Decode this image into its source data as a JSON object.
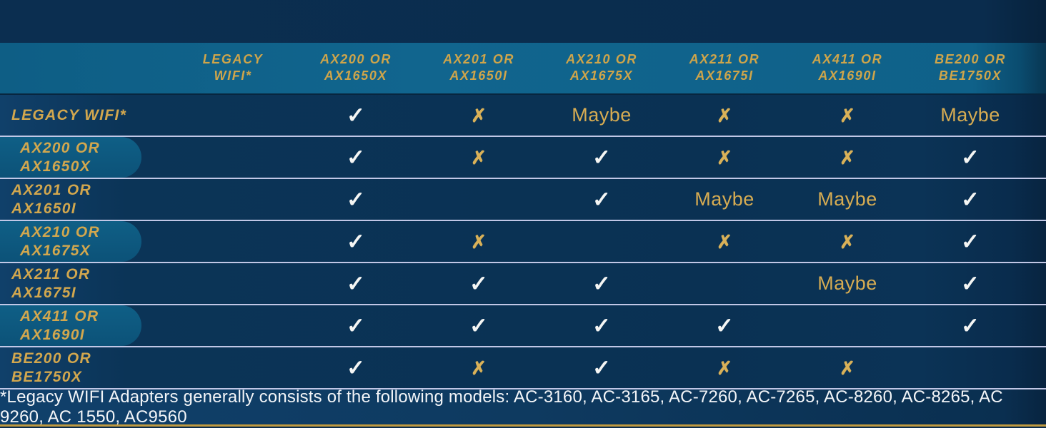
{
  "colors": {
    "background_navy": "#0a2c4d",
    "header_band_teal": "#0f6189",
    "row_navy": "#0a3153",
    "row_pill_teal": "#0d577d",
    "separator_lavender": "#cbd0ee",
    "label_gold": "#d2a74e",
    "symbol_gold": "#d9b158",
    "check_white": "#f5f6f4",
    "footer_navy": "#0e3a60",
    "bottom_strip_gold": "#c09a40"
  },
  "chart_data": {
    "type": "table",
    "columns": [
      {
        "line1": "LEGACY",
        "line2": "WIFI*"
      },
      {
        "line1": "AX200 OR",
        "line2": "AX1650X"
      },
      {
        "line1": "AX201 OR",
        "line2": "AX1650I"
      },
      {
        "line1": "AX210 OR",
        "line2": "AX1675X"
      },
      {
        "line1": "AX211 OR",
        "line2": "AX1675I"
      },
      {
        "line1": "AX411 OR",
        "line2": "AX1690I"
      },
      {
        "line1": "BE200 OR",
        "line2": "BE1750X"
      }
    ],
    "rows": [
      {
        "label1": "LEGACY WIFI*",
        "label2": "",
        "pill": false,
        "cells": [
          "",
          "check",
          "x",
          "maybe",
          "x",
          "x",
          "maybe"
        ]
      },
      {
        "label1": "AX200 OR",
        "label2": "AX1650X",
        "pill": true,
        "cells": [
          "",
          "check",
          "x",
          "check",
          "x",
          "x",
          "check"
        ]
      },
      {
        "label1": "AX201 OR",
        "label2": "AX1650I",
        "pill": false,
        "cells": [
          "",
          "check",
          "",
          "check",
          "maybe",
          "maybe",
          "check"
        ]
      },
      {
        "label1": "AX210 OR",
        "label2": "AX1675X",
        "pill": true,
        "cells": [
          "",
          "check",
          "x",
          "",
          "x",
          "x",
          "check"
        ]
      },
      {
        "label1": "AX211 OR",
        "label2": "AX1675I",
        "pill": false,
        "cells": [
          "",
          "check",
          "check",
          "check",
          "",
          "maybe",
          "check"
        ]
      },
      {
        "label1": "AX411 OR",
        "label2": "AX1690I",
        "pill": true,
        "cells": [
          "",
          "check",
          "check",
          "check",
          "check",
          "",
          "check"
        ]
      },
      {
        "label1": "BE200 OR",
        "label2": "BE1750X",
        "pill": false,
        "cells": [
          "",
          "check",
          "x",
          "check",
          "x",
          "x",
          ""
        ]
      }
    ],
    "symbols": {
      "check": "✓",
      "x": "✗",
      "maybe": "Maybe"
    }
  },
  "footnote": "*Legacy WIFI Adapters generally consists of the following models: AC-3160, AC-3165, AC-7260, AC-7265, AC-8260, AC-8265, AC 9260, AC 1550, AC9560"
}
